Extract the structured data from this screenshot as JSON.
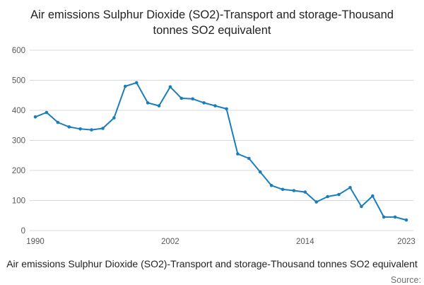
{
  "title": "Air emissions Sulphur Dioxide (SO2)-Transport and storage-Thousand tonnes SO2 equivalent",
  "footer": {
    "caption": "Air emissions Sulphur Dioxide (SO2)-Transport and storage-Thousand tonnes SO2 equivalent",
    "source": "Source:"
  },
  "chart_data": {
    "type": "line",
    "title": "Air emissions Sulphur Dioxide (SO2)-Transport and storage-Thousand tonnes SO2 equivalent",
    "series_name": "Thousand tonnes SO2 equivalent",
    "x": [
      1990,
      1991,
      1992,
      1993,
      1994,
      1995,
      1996,
      1997,
      1998,
      1999,
      2000,
      2001,
      2002,
      2003,
      2004,
      2005,
      2006,
      2007,
      2008,
      2009,
      2010,
      2011,
      2012,
      2013,
      2014,
      2015,
      2016,
      2017,
      2018,
      2019,
      2020,
      2021,
      2022,
      2023
    ],
    "values": [
      378,
      393,
      360,
      345,
      338,
      335,
      340,
      375,
      480,
      492,
      425,
      415,
      478,
      440,
      438,
      425,
      415,
      405,
      255,
      240,
      195,
      150,
      137,
      133,
      128,
      95,
      113,
      120,
      143,
      80,
      115,
      45,
      45,
      35
    ],
    "xticks": [
      1990,
      2002,
      2014,
      2023
    ],
    "yticks": [
      0,
      100,
      200,
      300,
      400,
      500,
      600
    ],
    "ylim": [
      0,
      600
    ],
    "grid": true,
    "legend": "none",
    "line_color": "#1d7db8",
    "grid_color": "#d9d9d9",
    "tick_label_color": "#595959",
    "marker": "circle"
  }
}
